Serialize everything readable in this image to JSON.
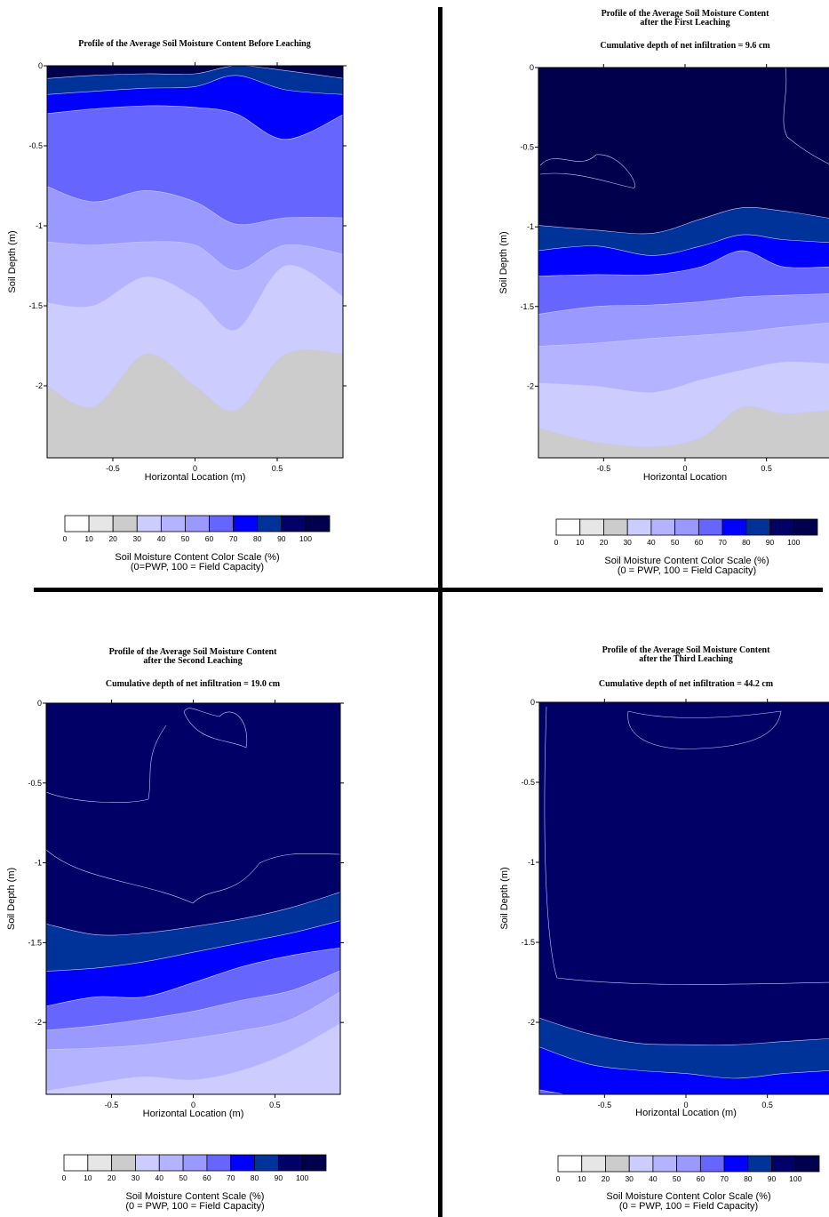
{
  "palette": {
    "bands": [
      "#ffffff",
      "#e6e6e6",
      "#cccccc",
      "#ccccff",
      "#b3b3ff",
      "#9999ff",
      "#6666ff",
      "#0000ff",
      "#003399",
      "#000066",
      "#00004d"
    ],
    "isoline": "#c8c8ff",
    "frame": "#000000",
    "divider": "#000000"
  },
  "scale": {
    "labels": [
      "0",
      "10",
      "20",
      "30",
      "40",
      "50",
      "60",
      "70",
      "80",
      "90",
      "100"
    ]
  },
  "panels": [
    {
      "id": "before",
      "title_lines": [
        "Profile of the Average Soil Moisture Content Before Leaching"
      ],
      "subtitle": "",
      "ylabel": "Soil Depth (m)",
      "xlabel": "Horizontal Location (m)",
      "scale_caption": [
        "Soil Moisture Content Color Scale (%)",
        "(0=PWP, 100 = Field Capacity)"
      ]
    },
    {
      "id": "first",
      "title_lines": [
        "Profile of the Average Soil Moisture Content",
        "after the First Leaching"
      ],
      "subtitle": "Cumulative depth of net infiltration = 9.6 cm",
      "ylabel": "Soil Depth (m)",
      "xlabel": "Horizontal Location",
      "scale_caption": [
        "Soil Moisture Content Color Scale (%)",
        "(0 = PWP, 100 = Field Capacity)"
      ]
    },
    {
      "id": "second",
      "title_lines": [
        "Profile of the Average Soil Moisture Content",
        "after the Second Leaching"
      ],
      "subtitle": "Cumulative depth of net infiltration = 19.0 cm",
      "ylabel": "Soil Depth (m)",
      "xlabel": "Horizontal Location (m)",
      "scale_caption": [
        "Soil Moisture Content Scale (%)",
        "(0 = PWP, 100 = Field Capacity)"
      ]
    },
    {
      "id": "third",
      "title_lines": [
        "Profile of the Average Soil Moisture Content",
        "after the Third Leaching"
      ],
      "subtitle": "Cumulative depth of net infiltration = 44.2 cm",
      "ylabel": "Soil Depth (m)",
      "xlabel": "Horizontal Location (m)",
      "scale_caption": [
        "Soil Moisture Content Color Scale (%)",
        "(0 = PWP, 100 = Field Capacity)"
      ]
    }
  ],
  "chart_data": [
    {
      "type": "heatmap",
      "title": "Profile of the Average Soil Moisture Content Before Leaching",
      "xlabel": "Horizontal Location (m)",
      "ylabel": "Soil Depth (m)",
      "xlim": [
        -0.9,
        0.9
      ],
      "ylim": [
        -2.45,
        0
      ],
      "xticks": [
        -0.5,
        0,
        0.5
      ],
      "yticks": [
        0,
        -0.5,
        -1,
        -1.5,
        -2
      ],
      "x": [
        -0.9,
        -0.62,
        -0.3,
        0,
        0.25,
        0.55,
        0.9
      ],
      "boundaries": [
        {
          "below_value": 90,
          "depths": [
            -0.08,
            -0.06,
            -0.05,
            -0.05,
            0.0,
            -0.03,
            -0.08
          ]
        },
        {
          "below_value": 80,
          "depths": [
            -0.18,
            -0.16,
            -0.14,
            -0.13,
            -0.06,
            -0.15,
            -0.18
          ]
        },
        {
          "below_value": 70,
          "depths": [
            -0.3,
            -0.27,
            -0.25,
            -0.26,
            -0.3,
            -0.46,
            -0.3
          ]
        },
        {
          "below_value": 60,
          "depths": [
            -0.75,
            -0.85,
            -0.78,
            -0.85,
            -0.99,
            -0.95,
            -0.95
          ]
        },
        {
          "below_value": 50,
          "depths": [
            -1.1,
            -1.12,
            -1.1,
            -1.12,
            -1.28,
            -1.12,
            -1.18
          ]
        },
        {
          "below_value": 40,
          "depths": [
            -1.48,
            -1.5,
            -1.32,
            -1.45,
            -1.65,
            -1.25,
            -1.45
          ]
        },
        {
          "below_value": 30,
          "depths": [
            -1.99,
            -2.13,
            -1.8,
            -2.0,
            -2.15,
            -1.8,
            -1.8
          ]
        }
      ],
      "bottom_value": 20,
      "top_value": 100
    },
    {
      "type": "heatmap",
      "title": "Profile of the Average Soil Moisture Content after the First Leaching",
      "subtitle": "Cumulative depth of net infiltration = 9.6 cm",
      "xlabel": "Horizontal Location",
      "ylabel": "Soil Depth (m)",
      "xlim": [
        -0.9,
        0.9
      ],
      "ylim": [
        -2.45,
        0
      ],
      "xticks": [
        -0.5,
        0,
        0.5
      ],
      "yticks": [
        0,
        -0.5,
        -1,
        -1.5,
        -2
      ],
      "x": [
        -0.9,
        -0.55,
        -0.2,
        0.1,
        0.35,
        0.6,
        0.9
      ],
      "boundaries": [
        {
          "below_value": 90,
          "depths": [
            -0.99,
            -1.02,
            -1.04,
            -0.95,
            -0.88,
            -0.9,
            -0.95
          ]
        },
        {
          "below_value": 80,
          "depths": [
            -1.15,
            -1.12,
            -1.18,
            -1.12,
            -1.05,
            -1.08,
            -1.1
          ]
        },
        {
          "below_value": 70,
          "depths": [
            -1.31,
            -1.3,
            -1.3,
            -1.25,
            -1.15,
            -1.25,
            -1.25
          ]
        },
        {
          "below_value": 60,
          "depths": [
            -1.55,
            -1.5,
            -1.49,
            -1.47,
            -1.44,
            -1.43,
            -1.42
          ]
        },
        {
          "below_value": 50,
          "depths": [
            -1.75,
            -1.73,
            -1.7,
            -1.68,
            -1.66,
            -1.63,
            -1.6
          ]
        },
        {
          "below_value": 40,
          "depths": [
            -1.98,
            -2.0,
            -2.04,
            -1.96,
            -1.9,
            -1.85,
            -1.86
          ]
        },
        {
          "below_value": 30,
          "depths": [
            -2.26,
            -2.35,
            -2.38,
            -2.32,
            -2.13,
            -2.17,
            -2.15
          ]
        }
      ],
      "bottom_value": 20,
      "top_value": 100
    },
    {
      "type": "heatmap",
      "title": "Profile of the Average Soil Moisture Content after the Second Leaching",
      "subtitle": "Cumulative depth of net infiltration = 19.0 cm",
      "xlabel": "Horizontal Location (m)",
      "ylabel": "Soil Depth (m)",
      "xlim": [
        -0.9,
        0.9
      ],
      "ylim": [
        -2.45,
        0
      ],
      "xticks": [
        -0.5,
        0,
        0.5
      ],
      "yticks": [
        0,
        -0.5,
        -1,
        -1.5,
        -2
      ],
      "x": [
        -0.9,
        -0.6,
        -0.3,
        0,
        0.3,
        0.6,
        0.9
      ],
      "boundaries": [
        {
          "below_value": 90,
          "depths": [
            -1.38,
            -1.45,
            -1.44,
            -1.4,
            -1.35,
            -1.28,
            -1.18
          ]
        },
        {
          "below_value": 80,
          "depths": [
            -1.68,
            -1.66,
            -1.62,
            -1.56,
            -1.5,
            -1.44,
            -1.36
          ]
        },
        {
          "below_value": 70,
          "depths": [
            -1.9,
            -1.84,
            -1.84,
            -1.75,
            -1.65,
            -1.58,
            -1.53
          ]
        },
        {
          "below_value": 60,
          "depths": [
            -2.05,
            -2.02,
            -1.98,
            -1.93,
            -1.86,
            -1.8,
            -1.67
          ]
        },
        {
          "below_value": 50,
          "depths": [
            -2.17,
            -2.16,
            -2.14,
            -2.1,
            -2.05,
            -1.98,
            -1.8
          ]
        },
        {
          "below_value": 40,
          "depths": [
            -2.43,
            -2.38,
            -2.34,
            -2.36,
            -2.3,
            -2.18,
            -2.0
          ]
        }
      ],
      "bottom_value": 30,
      "top_value": 90
    },
    {
      "type": "heatmap",
      "title": "Profile of the Average Soil Moisture Content after the Third Leaching",
      "subtitle": "Cumulative depth of net infiltration = 44.2 cm",
      "xlabel": "Horizontal Location (m)",
      "ylabel": "Soil Depth (m)",
      "xlim": [
        -0.9,
        0.9
      ],
      "ylim": [
        -2.45,
        0
      ],
      "xticks": [
        -0.5,
        0,
        0.5
      ],
      "yticks": [
        0,
        -0.5,
        -1,
        -1.5,
        -2
      ],
      "x": [
        -0.9,
        -0.6,
        -0.3,
        0,
        0.3,
        0.6,
        0.9
      ],
      "boundaries": [
        {
          "below_value": 90,
          "depths": [
            -1.97,
            -2.07,
            -2.13,
            -2.14,
            -2.14,
            -2.12,
            -2.1
          ]
        },
        {
          "below_value": 80,
          "depths": [
            -2.15,
            -2.26,
            -2.3,
            -2.32,
            -2.35,
            -2.32,
            -2.3
          ]
        },
        {
          "below_value": 70,
          "depths": [
            -2.42,
            -2.47,
            -2.47,
            -2.47,
            -2.47,
            -2.47,
            -2.47
          ]
        }
      ],
      "bottom_value": 60,
      "top_value": 90
    }
  ]
}
